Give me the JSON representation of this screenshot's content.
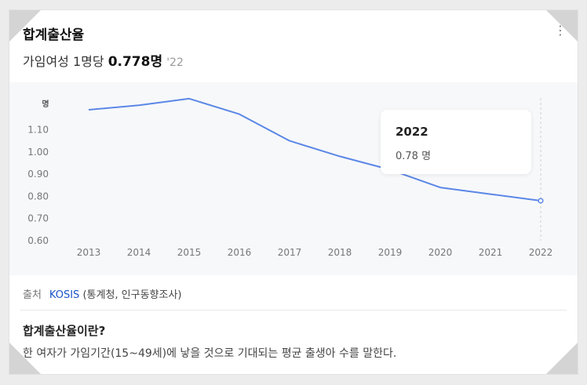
{
  "header": {
    "title": "합계출산율",
    "more_icon": "⋮",
    "subtitle_prefix": "가임여성 1명당",
    "subtitle_value": "0.778명",
    "subtitle_year": "'22"
  },
  "tooltip": {
    "year": "2022",
    "value": "0.78 명"
  },
  "source": {
    "label": "출처",
    "link": "KOSIS",
    "rest": "(통계청, 인구동향조사)"
  },
  "definition": {
    "title": "합계출산율이란?",
    "text": "한 여자가 가임기간(15~49세)에 낳을 것으로 기대되는 평균 출생아 수를 말한다."
  },
  "colors": {
    "line": "#5b87e6",
    "link": "#1a55c8"
  },
  "chart_data": {
    "type": "line",
    "ylabel": "명",
    "x": [
      "2013",
      "2014",
      "2015",
      "2016",
      "2017",
      "2018",
      "2019",
      "2020",
      "2021",
      "2022"
    ],
    "series": [
      {
        "values": [
          1.19,
          1.21,
          1.24,
          1.17,
          1.05,
          0.98,
          0.92,
          0.84,
          0.81,
          0.78
        ]
      }
    ],
    "yticks": [
      "0.60",
      "0.70",
      "0.80",
      "0.90",
      "1.00",
      "1.10"
    ],
    "ylim": [
      0.6,
      1.25
    ],
    "highlight_index": 9,
    "grid": false
  }
}
